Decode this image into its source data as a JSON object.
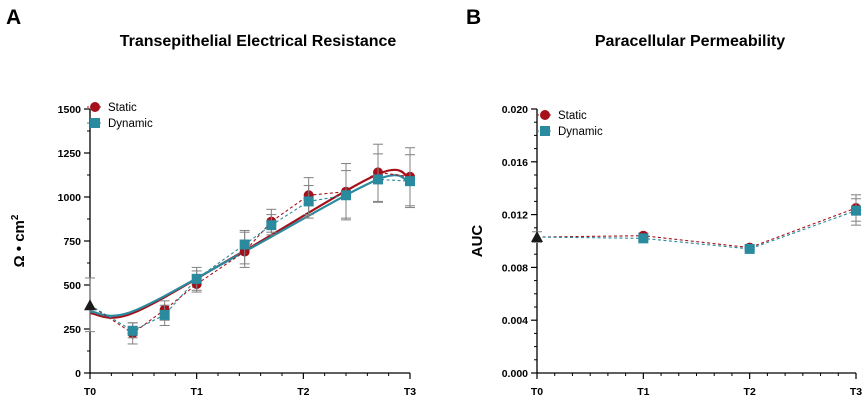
{
  "figure": {
    "panel_a": "A",
    "panel_b": "B"
  },
  "colors": {
    "static": "#a5101a",
    "dynamic": "#2a8a9e",
    "error": "#808080",
    "baseline": "#1a1a1a",
    "axis": "#000000"
  },
  "chart_data": [
    {
      "type": "line",
      "panel": "A",
      "title": "Transepithelial Electrical Resistance",
      "xlabel": "",
      "ylabel_prefix": "Ω • cm",
      "ylabel_sup": "2",
      "ylim": [
        0,
        1500
      ],
      "yticks": [
        0,
        250,
        500,
        750,
        1000,
        1250,
        1500
      ],
      "xlim": [
        0,
        3
      ],
      "xticks": [
        0,
        1,
        2,
        3
      ],
      "xtick_labels": [
        "T0",
        "T1",
        "T2",
        "T3"
      ],
      "legend": [
        "Static",
        "Dynamic"
      ],
      "baseline": {
        "x": 0,
        "y": 385,
        "err_low": 235,
        "err_high": 540
      },
      "series": [
        {
          "name": "Static",
          "x": [
            0.4,
            0.7,
            1.0,
            1.45,
            1.7,
            2.05,
            2.4,
            2.7,
            3.0
          ],
          "y": [
            225,
            360,
            505,
            690,
            860,
            1010,
            1030,
            1140,
            1115
          ],
          "err_low": [
            165,
            300,
            460,
            600,
            800,
            900,
            880,
            975,
            950
          ],
          "err_high": [
            285,
            410,
            580,
            800,
            930,
            1110,
            1190,
            1300,
            1280
          ],
          "fit": [
            340,
            340,
            695,
            1130,
            1100
          ]
        },
        {
          "name": "Dynamic",
          "x": [
            0.4,
            0.7,
            1.0,
            1.45,
            1.7,
            2.05,
            2.4,
            2.7,
            3.0
          ],
          "y": [
            240,
            330,
            535,
            730,
            840,
            975,
            1010,
            1100,
            1090
          ],
          "err_low": [
            200,
            270,
            470,
            620,
            785,
            880,
            870,
            970,
            940
          ],
          "err_high": [
            285,
            385,
            600,
            810,
            900,
            1065,
            1150,
            1245,
            1240
          ],
          "fit": [
            350,
            350,
            690,
            1100,
            1075
          ]
        }
      ]
    },
    {
      "type": "line",
      "panel": "B",
      "title": "Paracellular Permeability",
      "xlabel": "",
      "ylabel": "AUC",
      "ylim": [
        0,
        0.02
      ],
      "yticks": [
        0.0,
        0.004,
        0.008,
        0.012,
        0.016,
        0.02
      ],
      "ytick_labels": [
        "0.000",
        "0.004",
        "0.008",
        "0.012",
        "0.016",
        "0.020"
      ],
      "xlim": [
        0,
        3
      ],
      "xticks": [
        0,
        1,
        2,
        3
      ],
      "xtick_labels": [
        "T0",
        "T1",
        "T2",
        "T3"
      ],
      "legend": [
        "Static",
        "Dynamic"
      ],
      "baseline": {
        "x": 0,
        "y": 0.0103,
        "err_low": 0.0099,
        "err_high": 0.0107
      },
      "series": [
        {
          "name": "Static",
          "x": [
            0,
            1,
            2,
            3
          ],
          "y": [
            0.0103,
            0.0104,
            0.0095,
            0.0125
          ],
          "err_low": [
            0.0103,
            0.0102,
            0.0094,
            0.0115
          ],
          "err_high": [
            0.0103,
            0.0106,
            0.0096,
            0.0135
          ]
        },
        {
          "name": "Dynamic",
          "x": [
            0,
            1,
            2,
            3
          ],
          "y": [
            0.0103,
            0.0102,
            0.0094,
            0.0123
          ],
          "err_low": [
            0.0103,
            0.01,
            0.0093,
            0.0112
          ],
          "err_high": [
            0.0103,
            0.0104,
            0.0095,
            0.0132
          ]
        }
      ]
    }
  ]
}
